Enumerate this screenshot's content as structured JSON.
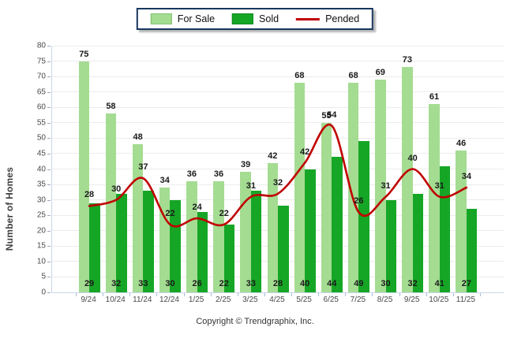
{
  "legend": {
    "items": [
      {
        "label": "For Sale",
        "type": "bar"
      },
      {
        "label": "Sold",
        "type": "bar"
      },
      {
        "label": "Pended",
        "type": "line"
      }
    ]
  },
  "chart_data": {
    "type": "bar",
    "title": "",
    "categories": [
      "9/24",
      "10/24",
      "11/24",
      "12/24",
      "1/25",
      "2/25",
      "3/25",
      "4/25",
      "5/25",
      "6/25",
      "7/25",
      "8/25",
      "9/25",
      "10/25",
      "11/25"
    ],
    "series": [
      {
        "name": "For Sale",
        "type": "bar",
        "color": "#A4DC92",
        "values": [
          75,
          58,
          48,
          34,
          36,
          36,
          39,
          42,
          68,
          55,
          68,
          69,
          73,
          61,
          46
        ]
      },
      {
        "name": "Sold",
        "type": "bar",
        "color": "#16A626",
        "values": [
          29,
          32,
          33,
          30,
          26,
          22,
          33,
          28,
          40,
          44,
          49,
          30,
          32,
          41,
          27
        ]
      },
      {
        "name": "Pended",
        "type": "line",
        "color": "#C00000",
        "values": [
          28,
          30,
          37,
          22,
          24,
          22,
          31,
          32,
          42,
          54,
          26,
          31,
          40,
          31,
          34
        ]
      }
    ],
    "xlabel": "",
    "ylabel": "Number of Homes",
    "ylim": [
      0,
      80
    ],
    "yticks": [
      0,
      5,
      10,
      15,
      20,
      25,
      30,
      35,
      40,
      45,
      50,
      55,
      60,
      65,
      70,
      75,
      80
    ],
    "grid": true,
    "legend_position": "top-center",
    "data_labels": true
  },
  "footer": {
    "copyright": "Copyright © Trendgraphix, Inc."
  }
}
